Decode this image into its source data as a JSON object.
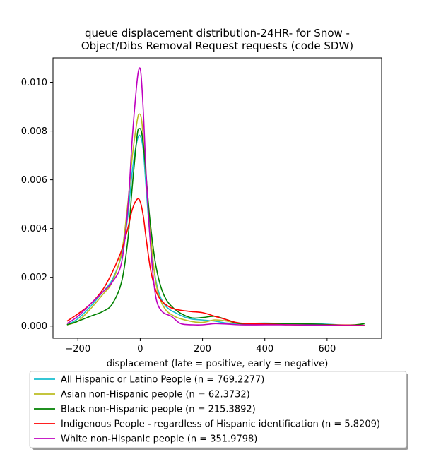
{
  "chart_data": {
    "type": "line",
    "title": "queue displacement distribution-24HR-  for Snow -\nObject/Dibs Removal Request  requests (code SDW)",
    "title_lines": [
      "queue displacement distribution-24HR-  for Snow -",
      "Object/Dibs Removal Request  requests (code SDW)"
    ],
    "xlabel": "displacement (late = positive, early = negative)",
    "ylabel": "",
    "xlim": [
      -280,
      775
    ],
    "ylim": [
      -0.0005,
      0.011
    ],
    "x_ticks": [
      -200,
      0,
      200,
      400,
      600
    ],
    "x_tick_labels": [
      "−200",
      "0",
      "200",
      "400",
      "600"
    ],
    "y_ticks": [
      0.0,
      0.002,
      0.004,
      0.006,
      0.008,
      0.01
    ],
    "y_tick_labels": [
      "0.000",
      "0.002",
      "0.004",
      "0.006",
      "0.008",
      "0.010"
    ],
    "grid": false,
    "legend_placement": "below",
    "series": [
      {
        "name": "All Hispanic or Latino People (n = 769.2277)",
        "color": "#17becf",
        "points": [
          [
            -235,
            5e-05
          ],
          [
            -200,
            0.0003
          ],
          [
            -160,
            0.0008
          ],
          [
            -120,
            0.0014
          ],
          [
            -90,
            0.0019
          ],
          [
            -60,
            0.0029
          ],
          [
            -40,
            0.0045
          ],
          [
            -25,
            0.0064
          ],
          [
            -10,
            0.0076
          ],
          [
            0,
            0.0078
          ],
          [
            10,
            0.0072
          ],
          [
            20,
            0.0055
          ],
          [
            35,
            0.0032
          ],
          [
            55,
            0.0016
          ],
          [
            80,
            0.00085
          ],
          [
            120,
            0.0005
          ],
          [
            160,
            0.0003
          ],
          [
            200,
            0.00025
          ],
          [
            240,
            0.0002
          ],
          [
            280,
            0.00012
          ],
          [
            320,
            0.0001
          ],
          [
            400,
            0.00012
          ],
          [
            480,
            0.0001
          ],
          [
            560,
            0.0001
          ],
          [
            640,
            5e-05
          ],
          [
            720,
            3e-05
          ]
        ]
      },
      {
        "name": "Asian non-Hispanic people (n = 62.3732)",
        "color": "#bcbd22",
        "points": [
          [
            -235,
            5e-05
          ],
          [
            -200,
            0.0002
          ],
          [
            -160,
            0.0007
          ],
          [
            -120,
            0.0013
          ],
          [
            -90,
            0.0018
          ],
          [
            -60,
            0.003
          ],
          [
            -40,
            0.005
          ],
          [
            -25,
            0.007
          ],
          [
            -10,
            0.0084
          ],
          [
            -3,
            0.0087
          ],
          [
            5,
            0.0084
          ],
          [
            15,
            0.0068
          ],
          [
            30,
            0.0042
          ],
          [
            50,
            0.0018
          ],
          [
            75,
            0.0008
          ],
          [
            110,
            0.0004
          ],
          [
            160,
            0.0002
          ],
          [
            200,
            0.00015
          ],
          [
            240,
            0.00025
          ],
          [
            280,
            0.0002
          ],
          [
            320,
            0.0001
          ],
          [
            400,
            8e-05
          ],
          [
            480,
            8e-05
          ],
          [
            560,
            6e-05
          ],
          [
            640,
            4e-05
          ],
          [
            720,
            2e-05
          ]
        ]
      },
      {
        "name": "Black non-Hispanic people (n = 215.3892)",
        "color": "#008000",
        "points": [
          [
            -235,
            5e-05
          ],
          [
            -200,
            0.0002
          ],
          [
            -160,
            0.0004
          ],
          [
            -120,
            0.0006
          ],
          [
            -90,
            0.0009
          ],
          [
            -60,
            0.0018
          ],
          [
            -40,
            0.0035
          ],
          [
            -25,
            0.0058
          ],
          [
            -10,
            0.0078
          ],
          [
            -3,
            0.0081
          ],
          [
            5,
            0.0079
          ],
          [
            15,
            0.0068
          ],
          [
            30,
            0.0045
          ],
          [
            50,
            0.0025
          ],
          [
            75,
            0.0013
          ],
          [
            110,
            0.0007
          ],
          [
            160,
            0.00035
          ],
          [
            200,
            0.00035
          ],
          [
            240,
            0.0004
          ],
          [
            280,
            0.00025
          ],
          [
            320,
            0.0001
          ],
          [
            400,
            0.0001
          ],
          [
            480,
            0.0001
          ],
          [
            560,
            8e-05
          ],
          [
            640,
            4e-05
          ],
          [
            690,
            5e-05
          ],
          [
            720,
            0.0001
          ]
        ]
      },
      {
        "name": "Indigenous People - regardless of Hispanic identification (n = 5.8209)",
        "color": "#ff0000",
        "points": [
          [
            -235,
            0.0002
          ],
          [
            -200,
            0.0005
          ],
          [
            -160,
            0.0009
          ],
          [
            -120,
            0.0015
          ],
          [
            -90,
            0.0022
          ],
          [
            -60,
            0.0031
          ],
          [
            -40,
            0.004
          ],
          [
            -25,
            0.0048
          ],
          [
            -10,
            0.0052
          ],
          [
            0,
            0.0051
          ],
          [
            10,
            0.0045
          ],
          [
            20,
            0.0035
          ],
          [
            35,
            0.0022
          ],
          [
            55,
            0.0013
          ],
          [
            80,
            0.0009
          ],
          [
            110,
            0.0007
          ],
          [
            160,
            0.0006
          ],
          [
            200,
            0.00055
          ],
          [
            240,
            0.0004
          ],
          [
            280,
            0.00025
          ],
          [
            320,
            0.00012
          ],
          [
            400,
            8e-05
          ],
          [
            480,
            5e-05
          ],
          [
            560,
            4e-05
          ],
          [
            640,
            4e-05
          ],
          [
            720,
            3e-05
          ]
        ]
      },
      {
        "name": "White non-Hispanic people (n = 351.9798)",
        "color": "#bf00bf",
        "points": [
          [
            -235,
            0.0001
          ],
          [
            -200,
            0.0004
          ],
          [
            -160,
            0.0009
          ],
          [
            -120,
            0.0014
          ],
          [
            -90,
            0.0018
          ],
          [
            -60,
            0.0026
          ],
          [
            -40,
            0.0048
          ],
          [
            -25,
            0.0078
          ],
          [
            -12,
            0.0098
          ],
          [
            -5,
            0.0105
          ],
          [
            2,
            0.0104
          ],
          [
            10,
            0.0088
          ],
          [
            20,
            0.006
          ],
          [
            35,
            0.003
          ],
          [
            50,
            0.0012
          ],
          [
            70,
            0.0006
          ],
          [
            100,
            0.0004
          ],
          [
            130,
            0.0001
          ],
          [
            170,
            5e-05
          ],
          [
            200,
            5e-05
          ],
          [
            240,
            0.0001
          ],
          [
            280,
            8e-05
          ],
          [
            320,
            5e-05
          ],
          [
            400,
            5e-05
          ],
          [
            480,
            5e-05
          ],
          [
            560,
            4e-05
          ],
          [
            640,
            2e-05
          ],
          [
            720,
            2e-05
          ]
        ]
      }
    ]
  }
}
